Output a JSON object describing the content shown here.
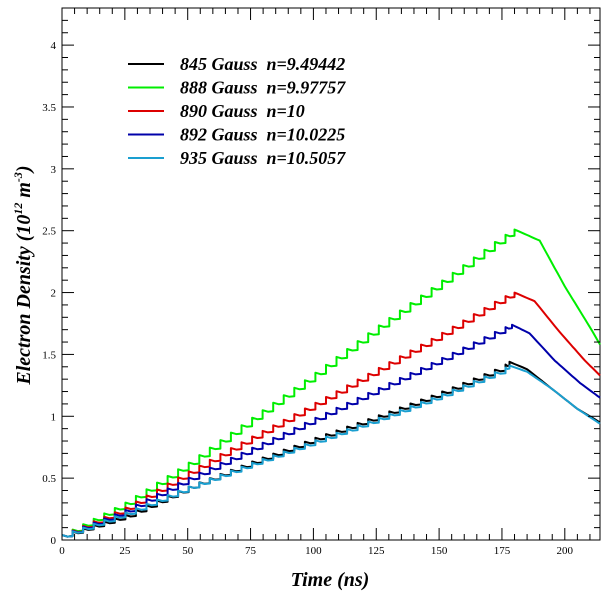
{
  "chart_data": {
    "type": "line",
    "title": "",
    "xlabel": "Time (ns)",
    "ylabel_main": "Electron Density (10",
    "ylabel_exp1": "12",
    "ylabel_mid": " m",
    "ylabel_exp2": "-3",
    "ylabel_end": ")",
    "xlim": [
      0,
      214
    ],
    "ylim": [
      0,
      4.3
    ],
    "x_ticks": [
      0,
      25,
      50,
      75,
      100,
      125,
      150,
      175,
      200
    ],
    "x_tick_labels": [
      "0",
      "25",
      "50",
      "75",
      "100",
      "125",
      "150",
      "175",
      "200"
    ],
    "y_ticks": [
      0,
      0.5,
      1,
      1.5,
      2,
      2.5,
      3,
      3.5,
      4
    ],
    "y_tick_labels": [
      "0",
      "0.5",
      "1",
      "1.5",
      "2",
      "2.5",
      "3",
      "3.5",
      "4"
    ],
    "grid": false,
    "legend_position": "top-left",
    "series": [
      {
        "name": "845 Gauss  n=9.49442",
        "color": "#000000",
        "peak_x": 178,
        "peak_y": 1.44,
        "x": [
          0,
          25,
          50,
          75,
          100,
          125,
          150,
          175,
          178,
          185,
          195,
          205,
          214
        ],
        "y": [
          0.04,
          0.2,
          0.43,
          0.63,
          0.82,
          1.0,
          1.19,
          1.4,
          1.44,
          1.38,
          1.22,
          1.06,
          0.95
        ]
      },
      {
        "name": "888 Gauss  n=9.97757",
        "color": "#00ee00",
        "peak_x": 180,
        "peak_y": 2.51,
        "x": [
          0,
          25,
          50,
          75,
          100,
          125,
          150,
          175,
          180,
          190,
          200,
          210,
          214
        ],
        "y": [
          0.04,
          0.3,
          0.62,
          0.98,
          1.34,
          1.72,
          2.08,
          2.45,
          2.51,
          2.42,
          2.05,
          1.72,
          1.58
        ]
      },
      {
        "name": "890 Gauss  n=10",
        "color": "#dd0000",
        "peak_x": 180,
        "peak_y": 2.0,
        "x": [
          0,
          25,
          50,
          75,
          100,
          125,
          150,
          175,
          180,
          188,
          198,
          208,
          214
        ],
        "y": [
          0.04,
          0.26,
          0.55,
          0.83,
          1.1,
          1.38,
          1.66,
          1.96,
          2.0,
          1.93,
          1.68,
          1.45,
          1.33
        ]
      },
      {
        "name": "892 Gauss  n=10.0225",
        "color": "#0000aa",
        "peak_x": 179,
        "peak_y": 1.74,
        "x": [
          0,
          25,
          50,
          75,
          100,
          125,
          150,
          175,
          179,
          186,
          196,
          206,
          214
        ],
        "y": [
          0.04,
          0.24,
          0.5,
          0.74,
          0.98,
          1.22,
          1.46,
          1.71,
          1.74,
          1.67,
          1.45,
          1.27,
          1.15
        ]
      },
      {
        "name": "935 Gauss  n=10.5057",
        "color": "#1a9fd0",
        "peak_x": 178,
        "peak_y": 1.41,
        "x": [
          0,
          25,
          50,
          75,
          100,
          125,
          150,
          175,
          178,
          185,
          195,
          205,
          214
        ],
        "y": [
          0.04,
          0.22,
          0.43,
          0.62,
          0.8,
          0.98,
          1.17,
          1.38,
          1.41,
          1.36,
          1.22,
          1.06,
          0.94
        ]
      }
    ]
  }
}
